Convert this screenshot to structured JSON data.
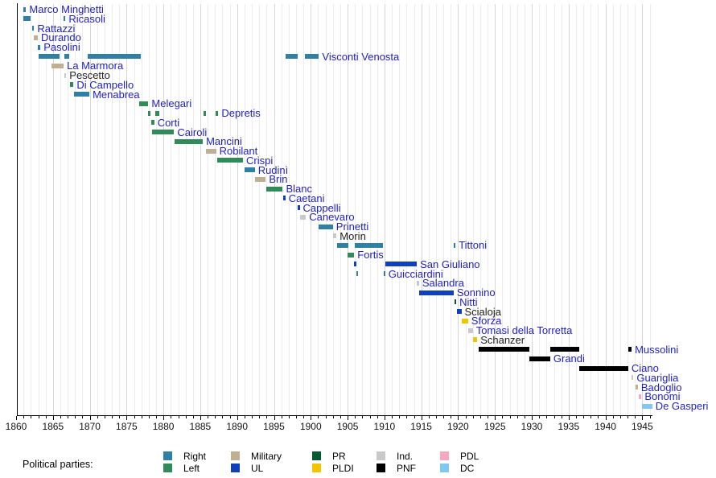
{
  "colors": {
    "link_label": "#2121c8",
    "plain_label": "#222222",
    "axis": "#000000",
    "grid_minor": "#ececec",
    "grid_major": "#d6d6d6",
    "background": "#ffffff"
  },
  "chart_data": {
    "type": "timeline",
    "title": "",
    "x_axis": {
      "min": 1860,
      "max": 1946.5,
      "major_step": 5,
      "minor_step": 1,
      "tick_labels": [
        "1860",
        "1865",
        "1870",
        "1875",
        "1880",
        "1885",
        "1890",
        "1895",
        "1900",
        "1905",
        "1910",
        "1915",
        "1920",
        "1925",
        "1930",
        "1935",
        "1940",
        "1945"
      ]
    },
    "legend_title": "Political parties:",
    "parties": [
      {
        "id": "Right",
        "label": "Right",
        "color": "#2e80a5"
      },
      {
        "id": "Left",
        "label": "Left",
        "color": "#318a5a"
      },
      {
        "id": "Military",
        "label": "Military",
        "color": "#c0b091"
      },
      {
        "id": "UL",
        "label": "UL",
        "color": "#0f41bd"
      },
      {
        "id": "PR",
        "label": "PR",
        "color": "#045a30"
      },
      {
        "id": "PLDI",
        "label": "PLDI",
        "color": "#f2c500"
      },
      {
        "id": "Ind",
        "label": "Ind.",
        "color": "#c9c9c9"
      },
      {
        "id": "PNF",
        "label": "PNF",
        "color": "#000000"
      },
      {
        "id": "PDL",
        "label": "PDL",
        "color": "#f6a8c0"
      },
      {
        "id": "DC",
        "label": "DC",
        "color": "#82c7ee"
      }
    ],
    "legend_columns": [
      [
        "Right",
        "Left"
      ],
      [
        "Military",
        "UL"
      ],
      [
        "PR",
        "PLDI"
      ],
      [
        "Ind",
        "PNF"
      ],
      [
        "PDL",
        "DC"
      ]
    ],
    "ministers": [
      {
        "name": "Marco Minghetti",
        "party": "Right",
        "link": true,
        "terms": [
          [
            1861.0,
            1861.35
          ]
        ]
      },
      {
        "name": "Ricasoli",
        "party": "Right",
        "link": true,
        "terms": [
          [
            1861.0,
            1862.0
          ],
          [
            1866.45,
            1866.7
          ]
        ]
      },
      {
        "name": "Rattazzi",
        "party": "Right",
        "link": true,
        "terms": [
          [
            1862.15,
            1862.45
          ]
        ]
      },
      {
        "name": "Durando",
        "party": "Military",
        "link": true,
        "terms": [
          [
            1862.45,
            1862.95
          ]
        ]
      },
      {
        "name": "Pasolini",
        "party": "Right",
        "link": true,
        "terms": [
          [
            1862.95,
            1863.3
          ]
        ]
      },
      {
        "name": "Visconti Venosta",
        "party": "Right",
        "link": true,
        "terms": [
          [
            1863.1,
            1865.85
          ],
          [
            1866.5,
            1867.2
          ],
          [
            1869.75,
            1876.9
          ],
          [
            1896.6,
            1898.25
          ],
          [
            1899.15,
            1901.1
          ]
        ]
      },
      {
        "name": "La Marmora",
        "party": "Military",
        "link": true,
        "terms": [
          [
            1864.75,
            1866.45
          ]
        ]
      },
      {
        "name": "Pescetto",
        "party": "Ind",
        "link": false,
        "terms": [
          [
            1866.5,
            1866.8
          ]
        ]
      },
      {
        "name": "Di Campello",
        "party": "Left",
        "link": true,
        "terms": [
          [
            1867.3,
            1867.8
          ]
        ]
      },
      {
        "name": "Menabrea",
        "party": "Right",
        "link": true,
        "terms": [
          [
            1867.85,
            1869.95
          ]
        ]
      },
      {
        "name": "Melegari",
        "party": "Left",
        "link": true,
        "terms": [
          [
            1876.75,
            1877.95
          ]
        ]
      },
      {
        "name": "Depretis",
        "party": "Left",
        "link": true,
        "terms": [
          [
            1877.95,
            1878.25
          ],
          [
            1878.9,
            1879.45
          ],
          [
            1885.4,
            1885.8
          ],
          [
            1887.1,
            1887.45
          ]
        ]
      },
      {
        "name": "Corti",
        "party": "Left",
        "link": true,
        "terms": [
          [
            1878.3,
            1878.75
          ]
        ]
      },
      {
        "name": "Cairoli",
        "party": "Left",
        "link": true,
        "terms": [
          [
            1878.45,
            1881.45
          ]
        ]
      },
      {
        "name": "Mancini",
        "party": "Left",
        "link": true,
        "terms": [
          [
            1881.5,
            1885.35
          ]
        ]
      },
      {
        "name": "Robilant",
        "party": "Military",
        "link": true,
        "terms": [
          [
            1885.75,
            1887.15
          ]
        ]
      },
      {
        "name": "Crispi",
        "party": "Left",
        "link": true,
        "terms": [
          [
            1887.3,
            1890.8
          ]
        ]
      },
      {
        "name": "Rudinì",
        "party": "Right",
        "link": true,
        "terms": [
          [
            1891.05,
            1892.4
          ]
        ]
      },
      {
        "name": "Brin",
        "party": "Military",
        "link": true,
        "terms": [
          [
            1892.4,
            1893.9
          ]
        ]
      },
      {
        "name": "Blanc",
        "party": "Left",
        "link": true,
        "terms": [
          [
            1893.95,
            1896.2
          ]
        ]
      },
      {
        "name": "Caetani",
        "party": "UL",
        "link": true,
        "terms": [
          [
            1896.2,
            1896.55
          ]
        ]
      },
      {
        "name": "Cappelli",
        "party": "UL",
        "link": true,
        "terms": [
          [
            1898.25,
            1898.5
          ]
        ]
      },
      {
        "name": "Canevaro",
        "party": "Ind",
        "link": true,
        "terms": [
          [
            1898.5,
            1899.35
          ]
        ]
      },
      {
        "name": "Prinetti",
        "party": "Right",
        "link": true,
        "terms": [
          [
            1901.1,
            1903.0
          ]
        ]
      },
      {
        "name": "Morin",
        "party": "Ind",
        "link": false,
        "terms": [
          [
            1903.0,
            1903.5
          ]
        ]
      },
      {
        "name": "Tittoni",
        "party": "Right",
        "link": true,
        "terms": [
          [
            1903.55,
            1905.1
          ],
          [
            1905.95,
            1909.8
          ],
          [
            1919.4,
            1919.65
          ]
        ]
      },
      {
        "name": "Fortis",
        "party": "Left",
        "link": true,
        "terms": [
          [
            1905.0,
            1905.9
          ]
        ]
      },
      {
        "name": "San Giuliano",
        "party": "UL",
        "link": true,
        "terms": [
          [
            1905.9,
            1906.15
          ],
          [
            1910.1,
            1914.4
          ]
        ]
      },
      {
        "name": "Guicciardini",
        "party": "Right",
        "link": true,
        "terms": [
          [
            1906.15,
            1906.45
          ],
          [
            1909.85,
            1910.1
          ]
        ]
      },
      {
        "name": "Salandra",
        "party": "Ind",
        "link": true,
        "terms": [
          [
            1914.4,
            1914.7
          ]
        ]
      },
      {
        "name": "Sonnino",
        "party": "UL",
        "link": true,
        "terms": [
          [
            1914.75,
            1919.4
          ]
        ]
      },
      {
        "name": "Nitti",
        "party": "PR",
        "link": true,
        "terms": [
          [
            1919.5,
            1919.75
          ]
        ]
      },
      {
        "name": "Scialoja",
        "party": "UL",
        "link": false,
        "terms": [
          [
            1919.85,
            1920.45
          ]
        ]
      },
      {
        "name": "Sforza",
        "party": "PLDI",
        "link": true,
        "terms": [
          [
            1920.45,
            1921.35
          ]
        ]
      },
      {
        "name": "Tomasi della Torretta",
        "party": "Ind",
        "link": true,
        "terms": [
          [
            1921.4,
            1922.0
          ]
        ]
      },
      {
        "name": "Schanzer",
        "party": "PLDI",
        "link": false,
        "terms": [
          [
            1922.05,
            1922.6
          ]
        ]
      },
      {
        "name": "Mussolini",
        "party": "PNF",
        "link": true,
        "terms": [
          [
            1922.8,
            1929.65
          ],
          [
            1932.5,
            1936.45
          ],
          [
            1943.1,
            1943.55
          ]
        ]
      },
      {
        "name": "Grandi",
        "party": "PNF",
        "link": true,
        "terms": [
          [
            1929.65,
            1932.5
          ]
        ]
      },
      {
        "name": "Ciano",
        "party": "PNF",
        "link": true,
        "terms": [
          [
            1936.45,
            1943.1
          ]
        ]
      },
      {
        "name": "Guariglia",
        "party": "Ind",
        "link": true,
        "terms": [
          [
            1943.55,
            1943.8
          ]
        ]
      },
      {
        "name": "Badoglio",
        "party": "Military",
        "link": true,
        "terms": [
          [
            1944.05,
            1944.4
          ]
        ]
      },
      {
        "name": "Bonomi",
        "party": "PDL",
        "link": true,
        "terms": [
          [
            1944.5,
            1944.9
          ]
        ]
      },
      {
        "name": "De Gasperi",
        "party": "DC",
        "link": true,
        "terms": [
          [
            1944.95,
            1946.35
          ]
        ]
      }
    ]
  }
}
